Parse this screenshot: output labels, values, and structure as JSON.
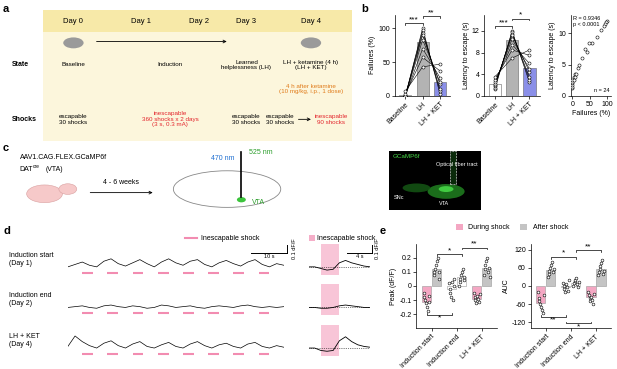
{
  "panel_labels": [
    "a",
    "b",
    "c",
    "d",
    "e"
  ],
  "panel_a": {
    "row_labels": [
      "State",
      "Shocks"
    ],
    "days": [
      "Day 0",
      "Day 1",
      "Day 2",
      "Day 3",
      "Day 4"
    ],
    "states": [
      "Baseline",
      "Induction",
      "Learned\nhelplessness (LH)",
      "LH + ketamine (4 h)\n(LH + KET)"
    ],
    "ketamine_note": "4 h after ketamine\n(10 mg/kg, i.p., 1 dose)",
    "shocks": [
      "escapable\n30 shocks",
      "inescapable\n360 shocks x 2 days\n(3 s, 0.3 mA)",
      "escapable\n30 shocks",
      "escapable\n30 shocks",
      "inescapable\n90 shocks"
    ]
  },
  "panel_c": {
    "virus": "AAV1.CAG.FLEX.GCaMP6f",
    "mouse_line": "DAT",
    "superscript": "cre",
    "target": "(VTA)",
    "wait": "4 - 6 weeks",
    "excitation": "470 nm",
    "emission": "525 nm",
    "region": "VTA",
    "image_labels": [
      "GCaMP6f",
      "Optical fiber tract",
      "SNc",
      "VTA"
    ]
  },
  "panel_d": {
    "shock_label": "Inescapable shock",
    "time": [
      0,
      2,
      4,
      6,
      8,
      10,
      12,
      14,
      16,
      18,
      20,
      22,
      24,
      26,
      28,
      30,
      32,
      34,
      36,
      38,
      40,
      42,
      44,
      46,
      48,
      50,
      52,
      54,
      56,
      58,
      60
    ],
    "shock_times": [
      4,
      11,
      18,
      25,
      32,
      39,
      46,
      53
    ],
    "shock_duration": 3,
    "avg_time": [
      -2,
      -1,
      0,
      1,
      2,
      3,
      4,
      5,
      6,
      7,
      8
    ],
    "baseline": 0,
    "scale_dff": {
      "value": 0.1,
      "label": "0.1 dF/F"
    },
    "scale_time": {
      "value": 10,
      "label": "10 s"
    },
    "scale_time_avg": {
      "value": 4,
      "label": "4 s"
    },
    "traces": [
      {
        "label": "Induction start\n(Day 1)",
        "values": [
          0.0,
          0.03,
          0.06,
          0.02,
          0.0,
          0.07,
          0.1,
          0.04,
          0.01,
          0.05,
          0.09,
          0.04,
          0.0,
          0.06,
          0.1,
          0.05,
          0.02,
          0.07,
          0.09,
          0.03,
          0.0,
          0.05,
          0.08,
          0.04,
          0.01,
          0.06,
          0.09,
          0.03,
          0.0,
          0.04,
          0.02
        ],
        "avg_values": [
          0,
          0,
          -0.02,
          -0.04,
          -0.03,
          0.05,
          0.08,
          0.05,
          0.03,
          0.01,
          0.0
        ]
      },
      {
        "label": "Induction end\n(Day 2)",
        "values": [
          0.0,
          0.01,
          0.02,
          0.0,
          -0.01,
          0.02,
          0.03,
          0.01,
          0.0,
          0.02,
          0.01,
          -0.01,
          0.0,
          0.03,
          0.02,
          0.0,
          0.01,
          0.02,
          0.0,
          -0.01,
          0.01,
          0.02,
          0.01,
          0.0,
          0.02,
          0.03,
          0.01,
          0.0,
          0.01,
          0.0,
          0.01
        ],
        "avg_values": [
          0,
          0,
          -0.01,
          -0.01,
          0.0,
          0.02,
          0.03,
          0.02,
          0.01,
          0.0,
          0.0
        ]
      },
      {
        "label": "LH + KET\n(Day 4)",
        "values": [
          0.02,
          0.15,
          0.08,
          0.03,
          0.0,
          0.06,
          0.09,
          0.03,
          0.0,
          0.05,
          0.08,
          0.02,
          0.0,
          0.04,
          0.07,
          0.02,
          0.0,
          0.05,
          0.08,
          0.03,
          0.0,
          0.04,
          0.06,
          0.02,
          0.0,
          0.05,
          0.07,
          0.02,
          0.0,
          0.03,
          0.01
        ],
        "avg_values": [
          0,
          0,
          -0.03,
          -0.04,
          -0.03,
          0.09,
          0.14,
          0.08,
          0.04,
          0.02,
          0.01
        ]
      }
    ]
  },
  "chart_data": [
    {
      "type": "bar",
      "ylabel": "Failures (%)",
      "categories": [
        "Baseline",
        "LH",
        "LH + KET"
      ],
      "values": [
        1,
        79,
        21
      ],
      "colors": [
        "#ffffff",
        "#b3b3b3",
        "#8a8fe8"
      ],
      "points": [
        [
          0,
          0,
          0,
          0,
          0,
          0,
          3,
          7
        ],
        [
          100,
          97,
          93,
          90,
          83,
          70,
          57,
          43
        ],
        [
          3,
          7,
          10,
          17,
          20,
          27,
          37,
          47
        ]
      ],
      "ylim": [
        0,
        120
      ],
      "yticks": [
        0,
        50,
        100
      ],
      "annotations": [
        {
          "text": "***",
          "between": [
            0,
            1
          ]
        },
        {
          "text": "**",
          "between": [
            1,
            2
          ]
        }
      ]
    },
    {
      "type": "bar",
      "ylabel": "Latency to escape (s)",
      "categories": [
        "Baseline",
        "LH",
        "LH + KET"
      ],
      "values": [
        2.2,
        10.3,
        5.1
      ],
      "colors": [
        "#ffffff",
        "#b3b3b3",
        "#8a8fe8"
      ],
      "points": [
        [
          1.2,
          1.5,
          1.8,
          2.0,
          2.2,
          2.5,
          3.0,
          3.5
        ],
        [
          12,
          11.8,
          11.5,
          11.2,
          10.5,
          9.5,
          8.5,
          7
        ],
        [
          2.5,
          3,
          3.5,
          4.5,
          5,
          6,
          7.5,
          8.5
        ]
      ],
      "ylim": [
        0,
        15
      ],
      "yticks": [
        0,
        4,
        8,
        12
      ],
      "annotations": [
        {
          "text": "***",
          "between": [
            0,
            1
          ]
        },
        {
          "text": "*",
          "between": [
            1,
            2
          ]
        }
      ]
    },
    {
      "type": "scatter",
      "xlabel": "Failures (%)",
      "ylabel": "Latency to escape (s)",
      "x": [
        0,
        0,
        0,
        0,
        0,
        0,
        3,
        7,
        100,
        97,
        93,
        90,
        83,
        70,
        57,
        43,
        3,
        7,
        10,
        17,
        20,
        27,
        37,
        47
      ],
      "y": [
        1.2,
        1.5,
        1.8,
        2.0,
        2.2,
        2.5,
        3.0,
        3.5,
        12,
        11.8,
        11.5,
        11.2,
        10.5,
        9.5,
        8.5,
        7,
        2.5,
        3,
        3.5,
        4.5,
        5,
        6,
        7.5,
        8.5
      ],
      "xlim": [
        -5,
        110
      ],
      "xticks": [
        0,
        50,
        100
      ],
      "ylim": [
        0,
        13
      ],
      "yticks": [
        0,
        5,
        10
      ],
      "annotations": [
        {
          "text": "R = 0.9346\np < 0.0001"
        },
        {
          "text": "n = 24"
        }
      ]
    },
    {
      "type": "bar",
      "ylabel": "Peak (dF/F)",
      "categories": [
        "Induction start",
        "Induction end",
        "LH + KET"
      ],
      "series": [
        {
          "name": "During shock",
          "colors": [
            "#f4a7c3",
            "#ffffff",
            "#f4a7c3"
          ],
          "values": [
            -0.11,
            -0.02,
            -0.09
          ],
          "points": [
            [
              -0.05,
              -0.08,
              -0.1,
              -0.12,
              -0.15,
              -0.18,
              -0.07,
              -0.11
            ],
            [
              0.02,
              -0.02,
              -0.05,
              -0.08,
              0.03,
              -0.1,
              0.0,
              0.05
            ],
            [
              -0.05,
              -0.08,
              -0.1,
              -0.12,
              -0.07,
              -0.09,
              -0.11,
              -0.06
            ]
          ]
        },
        {
          "name": "After shock",
          "colors": [
            "#c4c4c4",
            "#ffffff",
            "#c4c4c4"
          ],
          "values": [
            0.12,
            0.06,
            0.13
          ],
          "points": [
            [
              0.08,
              0.1,
              0.12,
              0.15,
              0.18,
              0.2,
              0.1,
              0.05
            ],
            [
              0.0,
              0.03,
              0.05,
              0.08,
              0.1,
              0.12,
              0.04,
              0.06
            ],
            [
              0.08,
              0.12,
              0.15,
              0.18,
              0.2,
              0.1,
              0.13,
              0.06
            ]
          ]
        }
      ],
      "ylim": [
        -0.3,
        0.3
      ],
      "yticks": [
        -0.2,
        -0.1,
        0,
        0.1,
        0.2
      ],
      "legend": "upper center",
      "annotations": [
        {
          "text": "*",
          "between": [
            0,
            1
          ],
          "series": "After shock"
        },
        {
          "text": "**",
          "between": [
            1,
            2
          ],
          "series": "After shock"
        },
        {
          "text": "*",
          "between": [
            0,
            1
          ],
          "series": "During shock"
        }
      ]
    },
    {
      "type": "bar",
      "ylabel": "AUC",
      "categories": [
        "Induction start",
        "Induction end",
        "LH + KET"
      ],
      "series": [
        {
          "name": "During shock",
          "colors": [
            "#f4a7c3",
            "#ffffff",
            "#f4a7c3"
          ],
          "values": [
            -55,
            -2,
            -38
          ],
          "points": [
            [
              -20,
              -40,
              -50,
              -60,
              -70,
              -80,
              -90,
              -30
            ],
            [
              10,
              0,
              -10,
              -20,
              5,
              -5,
              -15,
              20
            ],
            [
              -20,
              -30,
              -40,
              -50,
              -35,
              -45,
              -60,
              -25
            ]
          ]
        },
        {
          "name": "After shock",
          "colors": [
            "#c4c4c4",
            "#ffffff",
            "#c4c4c4"
          ],
          "values": [
            54,
            10,
            56
          ],
          "points": [
            [
              30,
              40,
              50,
              60,
              70,
              80,
              45,
              55
            ],
            [
              0,
              10,
              15,
              20,
              25,
              5,
              -5,
              12
            ],
            [
              35,
              45,
              55,
              65,
              75,
              85,
              40,
              50
            ]
          ]
        }
      ],
      "ylim": [
        -140,
        140
      ],
      "yticks": [
        -120,
        -60,
        0,
        60,
        120
      ],
      "annotations": [
        {
          "text": "*",
          "between": [
            0,
            1
          ],
          "series": "After shock"
        },
        {
          "text": "**",
          "between": [
            1,
            2
          ],
          "series": "After shock"
        },
        {
          "text": "**",
          "between": [
            0,
            1
          ],
          "series": "During shock"
        },
        {
          "text": "*",
          "between": [
            1,
            2
          ],
          "series": "During shock"
        }
      ]
    }
  ]
}
